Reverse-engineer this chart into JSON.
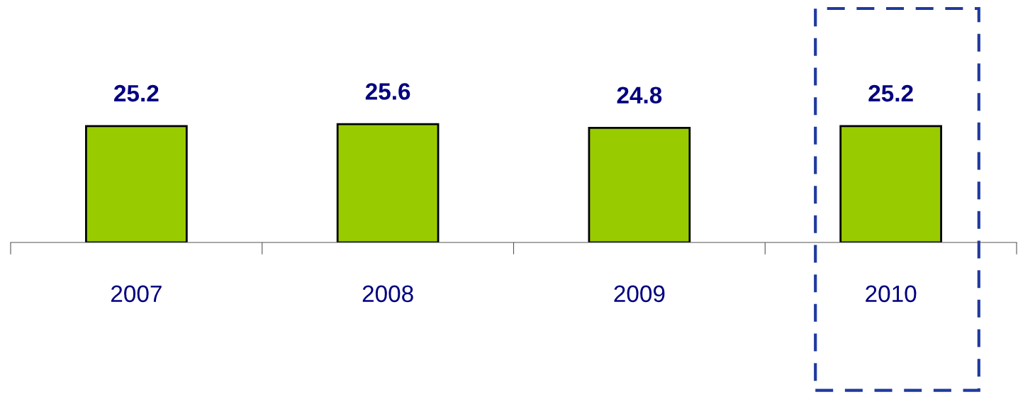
{
  "chart_data": {
    "type": "bar",
    "categories": [
      "2007",
      "2008",
      "2009",
      "2010"
    ],
    "values": [
      25.2,
      25.6,
      24.8,
      25.2
    ],
    "color": "#99cc00",
    "data_labels": true
  }
}
